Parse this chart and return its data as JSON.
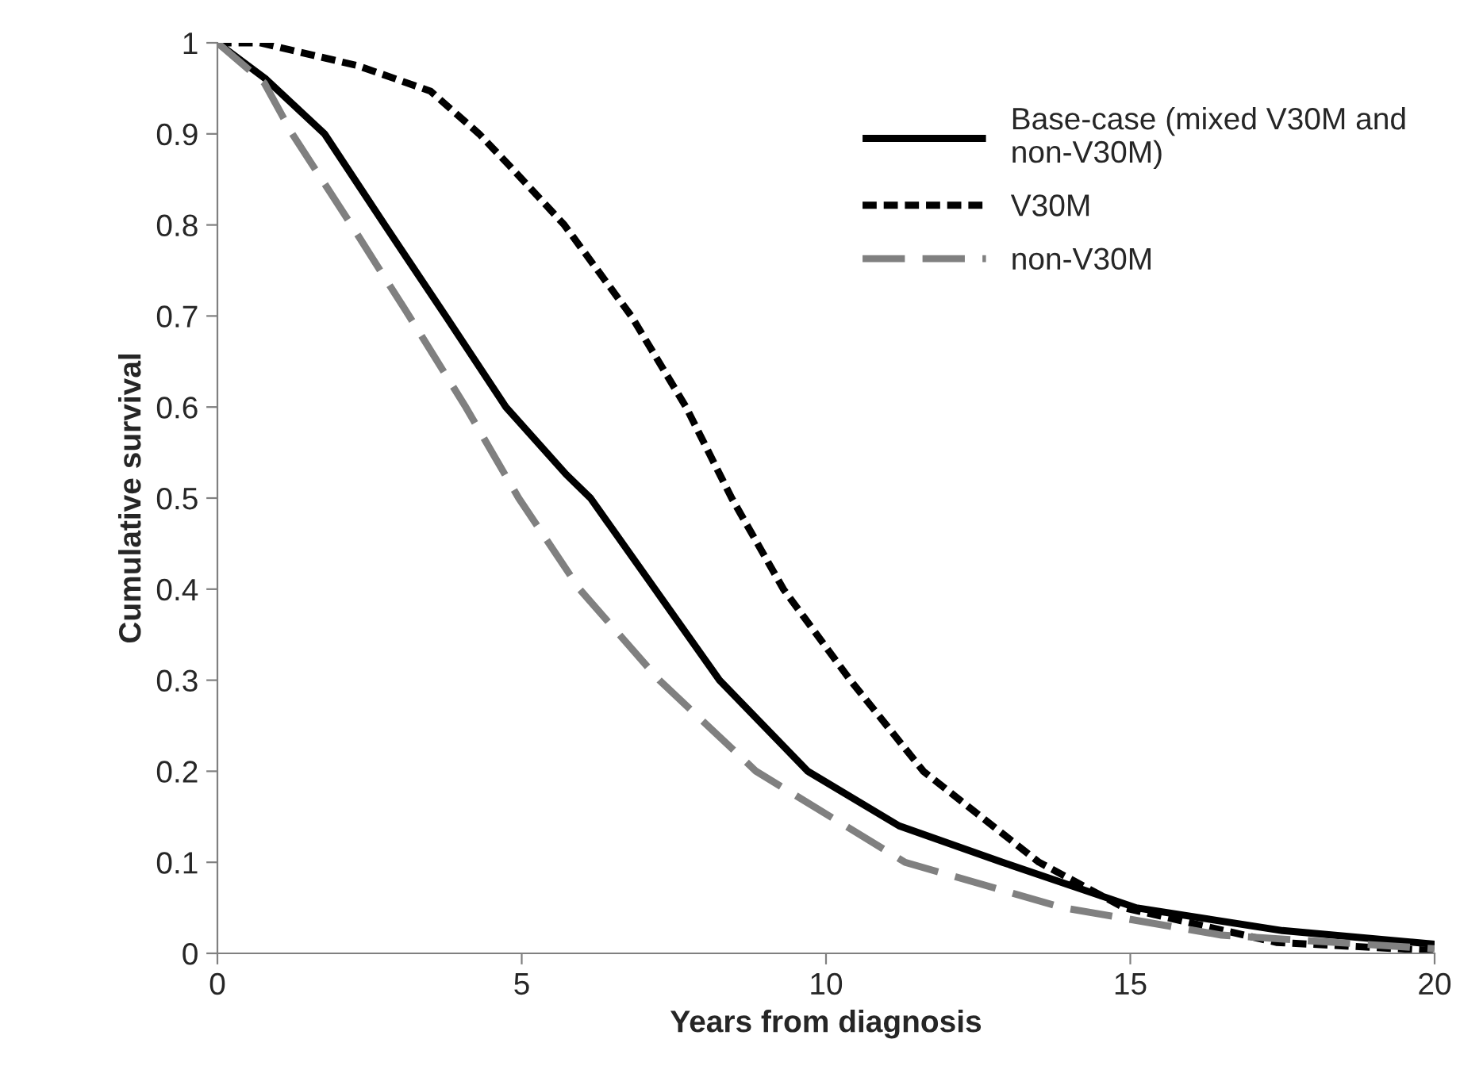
{
  "chart_data": {
    "type": "line",
    "xlabel": "Years from diagnosis",
    "ylabel": "Cumulative survival",
    "xlim": [
      0,
      20
    ],
    "xticks": [
      0,
      5,
      10,
      15,
      20
    ],
    "ylim": [
      0,
      1
    ],
    "yticks": [
      0,
      0.1,
      0.2,
      0.3,
      0.4,
      0.5,
      0.6,
      0.7,
      0.8,
      0.9,
      1
    ],
    "grid": false,
    "legend": "top right",
    "marker": "none",
    "series": [
      {
        "name": "Base-case (mixed V30M and non-V30M)",
        "color": "#000000",
        "line_style": "solid",
        "x": [
          0,
          0.8,
          1.76,
          2.75,
          3.75,
          4.74,
          5.73,
          6.13,
          7.19,
          8.25,
          9.7,
          11.2,
          12.9,
          15.1,
          17.5,
          20
        ],
        "values": [
          1,
          0.96,
          0.9,
          0.8,
          0.7,
          0.6,
          0.526,
          0.5,
          0.4,
          0.3,
          0.2,
          0.14,
          0.1,
          0.05,
          0.025,
          0.01
        ]
      },
      {
        "name": "V30M",
        "color": "#000000",
        "line_style": "dotted",
        "x": [
          0,
          0.7,
          2.3,
          3.5,
          4.3,
          4.8,
          5.7,
          6.8,
          7.7,
          8.45,
          9.3,
          10.4,
          11.6,
          13.5,
          14.9,
          17.4,
          20
        ],
        "values": [
          1,
          1,
          0.975,
          0.947,
          0.9,
          0.865,
          0.8,
          0.7,
          0.6,
          0.5,
          0.4,
          0.3,
          0.2,
          0.1,
          0.05,
          0.012,
          0.003
        ]
      },
      {
        "name": "non-V30M",
        "color": "#808080",
        "line_style": "dashed",
        "x": [
          0,
          0.77,
          1.23,
          2.2,
          3.15,
          4.08,
          4.95,
          5.95,
          7.26,
          8.85,
          11.3,
          13.9,
          16.5,
          20
        ],
        "values": [
          1,
          0.956,
          0.9,
          0.8,
          0.7,
          0.6,
          0.5,
          0.4,
          0.3,
          0.2,
          0.1,
          0.05,
          0.02,
          0.005
        ]
      }
    ]
  }
}
